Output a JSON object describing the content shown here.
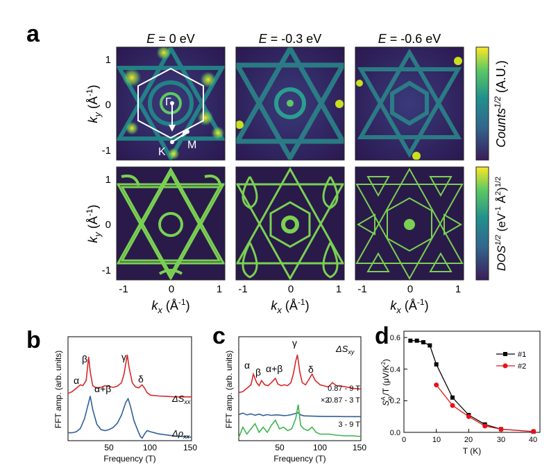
{
  "panel_labels": {
    "a": "a",
    "b": "b",
    "c": "c",
    "d": "d"
  },
  "panel_a": {
    "column_titles": [
      {
        "E": "E",
        "value": " = 0 eV"
      },
      {
        "E": "E",
        "value": " = -0.3 eV"
      },
      {
        "E": "E",
        "value": " = -0.6 eV"
      }
    ],
    "ky_label": {
      "k": "k",
      "sub": "y",
      "unit": " (Å",
      "exp": "-1",
      "close": ")"
    },
    "kx_label": {
      "k": "k",
      "sub": "x",
      "unit": " (Å",
      "exp": "-1",
      "close": ")"
    },
    "tick_labels": [
      "-1",
      "0",
      "1"
    ],
    "colorbar_top": {
      "base": "Counts",
      "exp": "1/2",
      "unit": " (A.U.)"
    },
    "colorbar_bottom": {
      "base": "DOS",
      "exp": "1/2",
      "unit": " (eV",
      "unit_exp": "-1",
      "unit2": " Å",
      "unit2_exp": "2",
      "close": ")",
      "close_exp": "1/2"
    },
    "bz_labels": {
      "gamma": "Γ",
      "K": "K",
      "M": "M"
    },
    "colors": {
      "cmap_low": "#3b1c5a",
      "cmap_mid": "#21908c",
      "cmap_high": "#fde725",
      "calc_line": "#7ad151"
    }
  },
  "chart_data": [
    {
      "type": "line",
      "panel": "b",
      "xlabel": "Frequency (T)",
      "ylabel": "FFT amp. (arb. units)",
      "xlim": [
        0,
        150
      ],
      "x_ticks": [
        "50",
        "100",
        "150"
      ],
      "series": [
        {
          "name": "ΔSxx",
          "label_base": "ΔS",
          "label_sub": "xx",
          "color": "#d62728",
          "x": [
            0,
            5,
            10,
            15,
            18,
            22,
            25,
            27,
            30,
            35,
            40,
            45,
            50,
            55,
            60,
            65,
            68,
            72,
            74,
            78,
            82,
            86,
            90,
            93,
            96,
            100,
            110,
            120,
            130,
            140,
            150
          ],
          "y": [
            0.1,
            0.14,
            0.22,
            0.3,
            0.28,
            0.4,
            0.95,
            0.6,
            0.28,
            0.22,
            0.24,
            0.28,
            0.26,
            0.24,
            0.27,
            0.35,
            0.55,
            1.0,
            0.72,
            0.35,
            0.25,
            0.23,
            0.3,
            0.22,
            0.12,
            0.06,
            0.04,
            0.03,
            0.02,
            0.02,
            0.02
          ]
        },
        {
          "name": "Δρxx",
          "label_base": "Δρ",
          "label_sub": "xx",
          "color": "#2f5e99",
          "x": [
            0,
            5,
            10,
            15,
            20,
            25,
            27,
            30,
            35,
            40,
            45,
            50,
            55,
            60,
            65,
            70,
            73,
            76,
            80,
            85,
            88,
            90,
            93,
            96,
            100,
            110,
            120,
            130,
            140,
            150
          ],
          "y": [
            0.12,
            0.12,
            0.14,
            0.2,
            0.38,
            0.68,
            0.8,
            0.55,
            0.28,
            0.18,
            0.16,
            0.18,
            0.22,
            0.3,
            0.45,
            0.68,
            0.75,
            0.6,
            0.35,
            0.15,
            0.05,
            0.02,
            0.1,
            0.16,
            0.14,
            0.1,
            0.08,
            0.06,
            0.05,
            0.04
          ]
        }
      ],
      "annotations": [
        "α",
        "β",
        "α+β",
        "γ",
        "δ"
      ]
    },
    {
      "type": "line",
      "panel": "c",
      "xlabel": "Frequency (T)",
      "ylabel": "FFT amp. (arb. units)",
      "xlim": [
        0,
        150
      ],
      "x_ticks": [
        "50",
        "100",
        "150"
      ],
      "title_base": "ΔS",
      "title_sub": "xy",
      "series": [
        {
          "name": "0.87 - 9 T",
          "color": "#d62728",
          "x": [
            0,
            5,
            10,
            15,
            18,
            22,
            25,
            28,
            32,
            36,
            40,
            45,
            48,
            52,
            56,
            60,
            64,
            67,
            70,
            72,
            75,
            78,
            82,
            86,
            90,
            94,
            100,
            110,
            115,
            120,
            130,
            140,
            150
          ],
          "y": [
            0.12,
            0.14,
            0.22,
            0.3,
            0.55,
            0.35,
            0.28,
            0.4,
            0.3,
            0.28,
            0.35,
            0.45,
            0.32,
            0.28,
            0.3,
            0.28,
            0.35,
            0.55,
            0.85,
            1.0,
            0.6,
            0.35,
            0.3,
            0.42,
            0.55,
            0.4,
            0.3,
            0.25,
            0.35,
            0.28,
            0.26,
            0.22,
            0.2
          ]
        },
        {
          "name": "0.87 - 3 T",
          "color": "#2f5e99",
          "scale_label": "×2",
          "x": [
            0,
            5,
            10,
            15,
            20,
            25,
            30,
            35,
            40,
            45,
            50,
            55,
            60,
            65,
            70,
            73,
            76,
            80,
            90,
            100,
            110,
            120,
            130,
            140,
            150
          ],
          "y": [
            0.2,
            0.32,
            0.18,
            0.26,
            0.15,
            0.24,
            0.12,
            0.2,
            0.14,
            0.18,
            0.16,
            0.12,
            0.14,
            0.2,
            0.3,
            0.35,
            0.18,
            0.1,
            0.08,
            0.06,
            0.05,
            0.05,
            0.04,
            0.04,
            0.04
          ]
        },
        {
          "name": "3 - 9 T",
          "color": "#3cb44b",
          "x": [
            0,
            5,
            10,
            15,
            20,
            25,
            30,
            35,
            40,
            45,
            50,
            55,
            60,
            65,
            70,
            73,
            76,
            80,
            85,
            90,
            95,
            100,
            110,
            120,
            130,
            140,
            150
          ],
          "y": [
            0.05,
            0.35,
            0.15,
            0.3,
            0.45,
            0.2,
            0.35,
            0.2,
            0.4,
            0.55,
            0.3,
            0.35,
            0.25,
            0.3,
            0.6,
            1.0,
            0.4,
            0.3,
            0.25,
            0.35,
            0.2,
            0.15,
            0.15,
            0.12,
            0.1,
            0.1,
            0.08
          ]
        }
      ],
      "annotations": [
        "α",
        "β",
        "α+β",
        "γ",
        "δ"
      ]
    },
    {
      "type": "line",
      "panel": "d",
      "xlabel": "T (K)",
      "ylabel": "S_xy^A/T (μV/K²)",
      "ylabel_parts": {
        "S": "S",
        "sup": "A",
        "sub": "xy",
        "rest": "/T (μV/K",
        "exp": "2",
        "close": ")"
      },
      "xlim": [
        0,
        42
      ],
      "ylim": [
        0,
        0.64
      ],
      "x_ticks": [
        "0",
        "10",
        "20",
        "30",
        "40"
      ],
      "y_ticks": [
        "0.0",
        "0.2",
        "0.4",
        "0.6"
      ],
      "series": [
        {
          "name": "#1",
          "color": "#000000",
          "marker": "square",
          "x": [
            2,
            4,
            6,
            8,
            10,
            15,
            20,
            25,
            30,
            40
          ],
          "y": [
            0.58,
            0.58,
            0.57,
            0.55,
            0.43,
            0.22,
            0.11,
            0.05,
            0.02,
            0.005
          ]
        },
        {
          "name": "#2",
          "color": "#e8101a",
          "marker": "circle",
          "x": [
            10,
            15,
            20,
            25,
            30,
            40
          ],
          "y": [
            0.3,
            0.17,
            0.1,
            0.04,
            0.02,
            0.005
          ]
        }
      ]
    }
  ]
}
